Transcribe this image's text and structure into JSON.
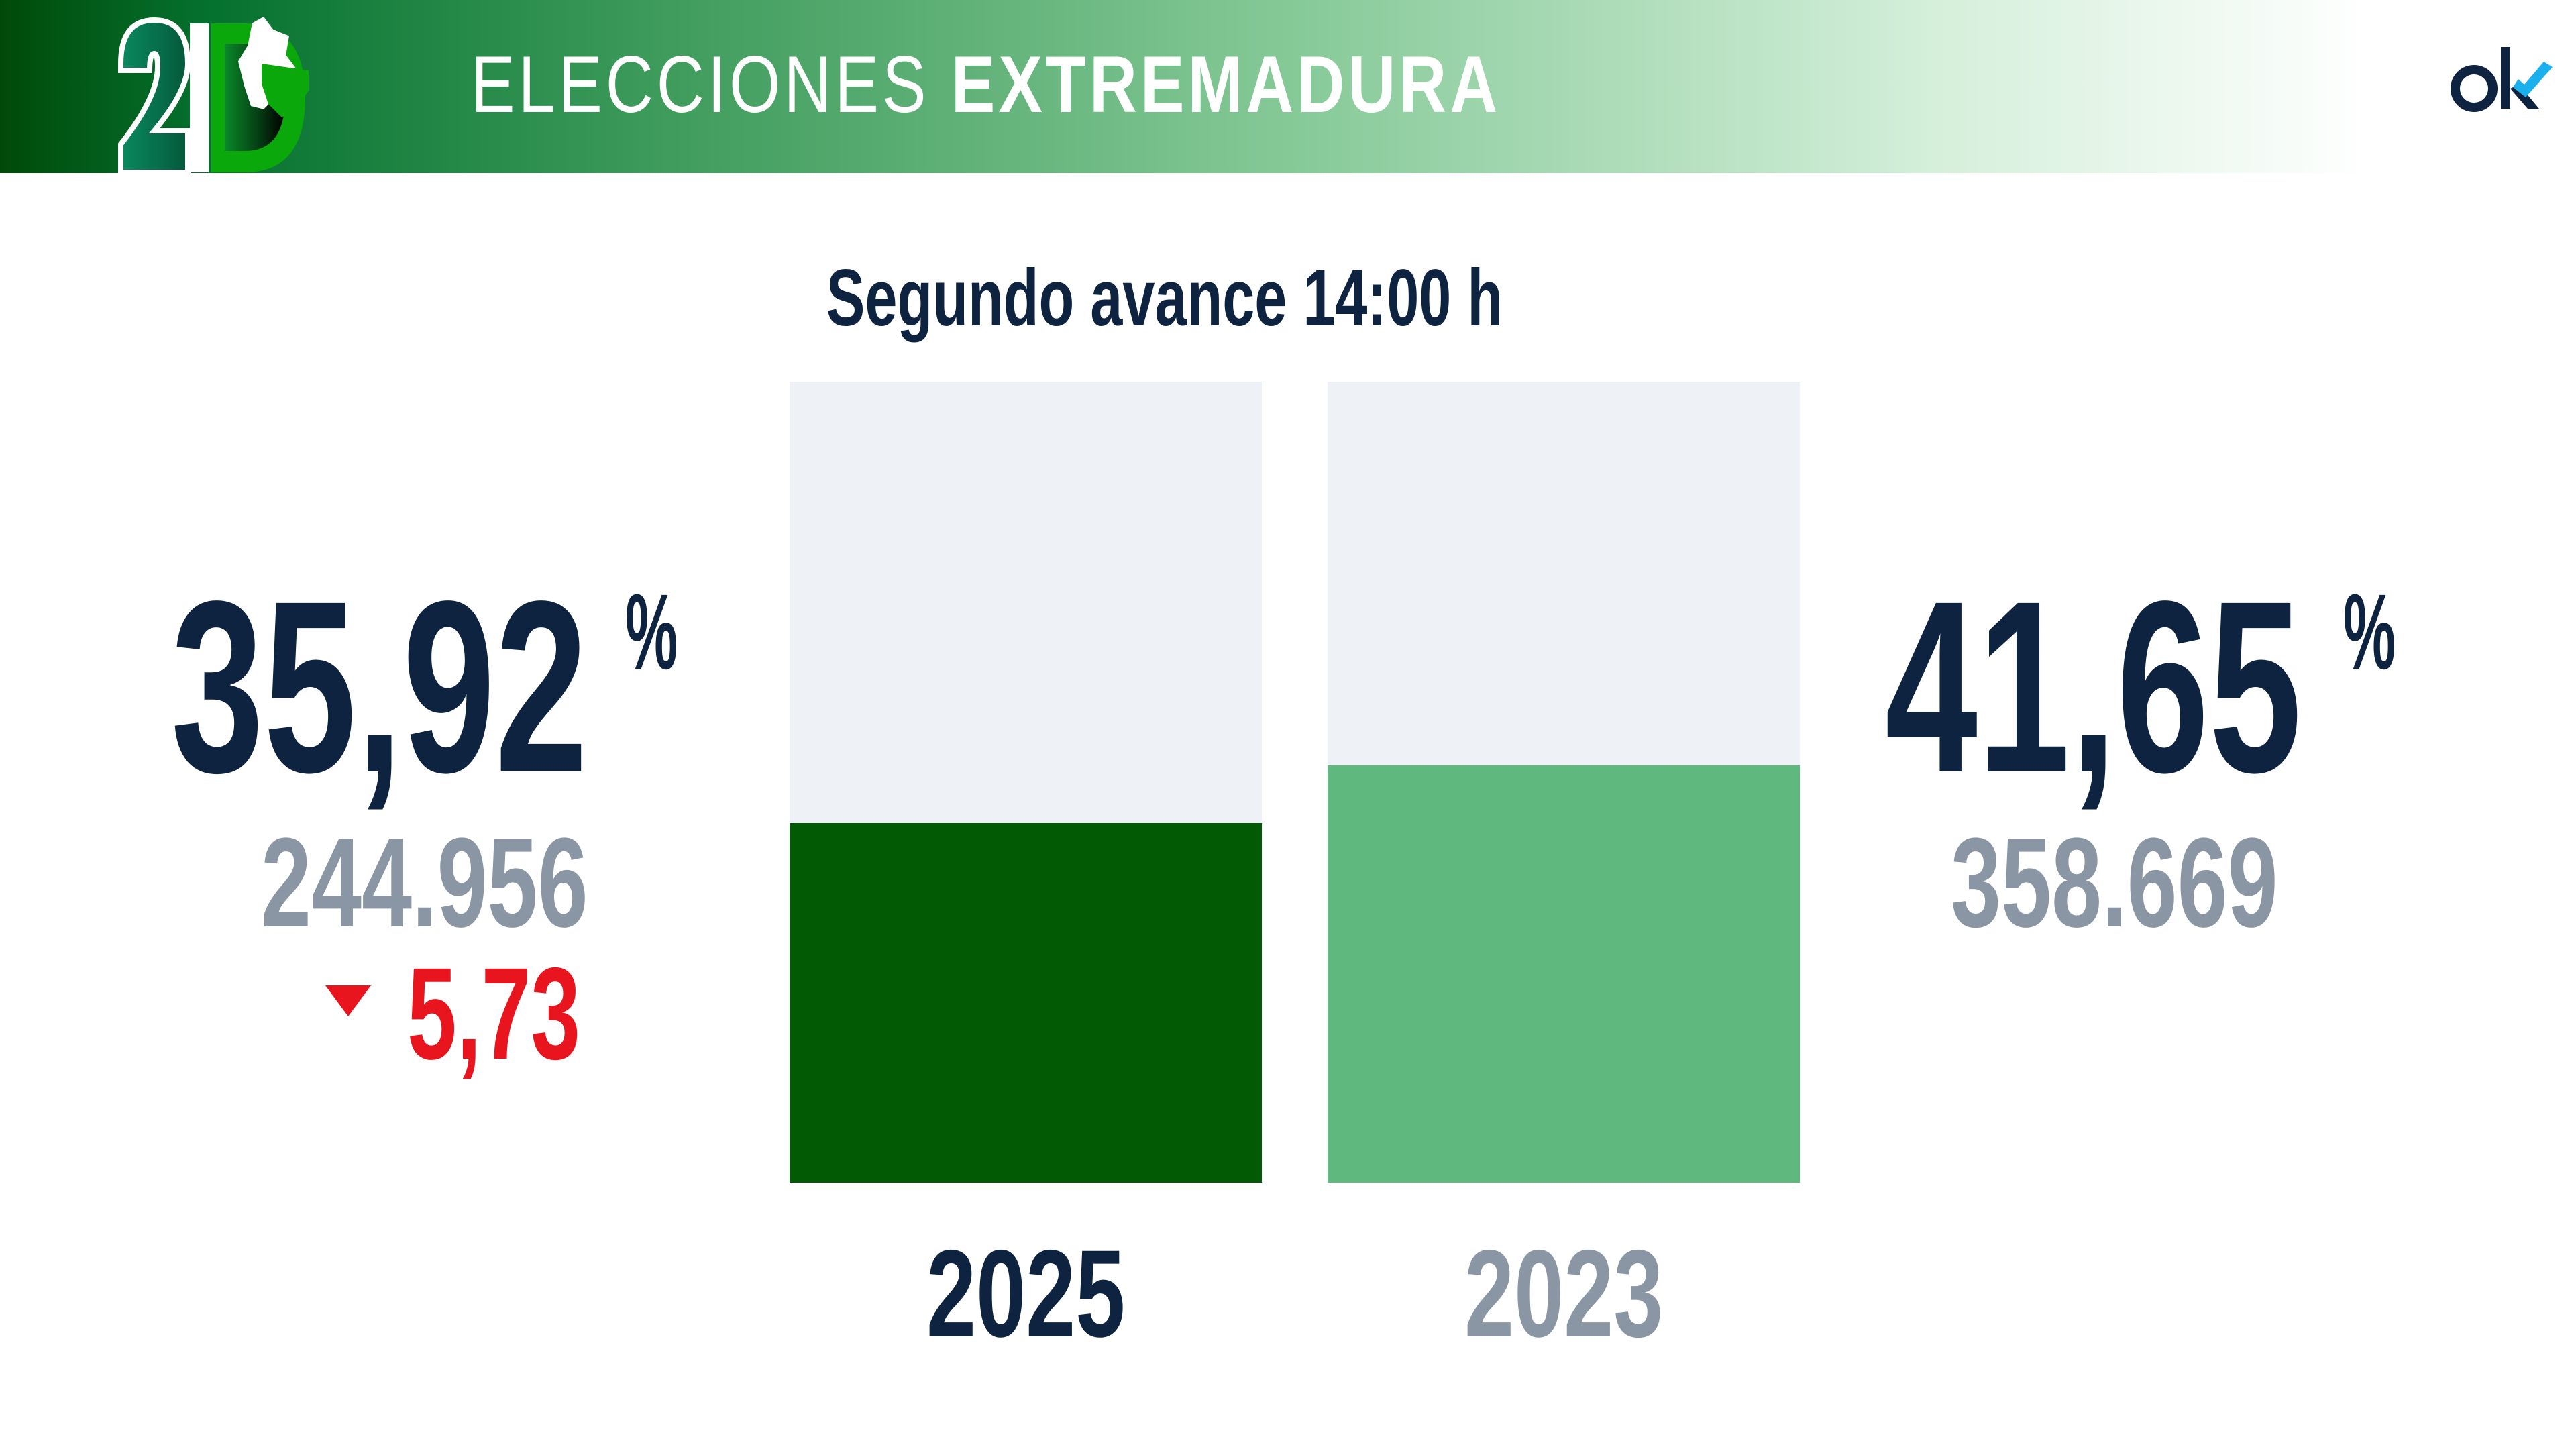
{
  "header": {
    "logo_text": "21D",
    "title_regular": "ELECCIONES",
    "title_bold": "EXTREMADURA",
    "brand_logo": "ok"
  },
  "subtitle": "Segundo avance 14:00 h",
  "chart_data": {
    "type": "bar",
    "categories": [
      "2025",
      "2023"
    ],
    "values": [
      35.92,
      41.65
    ],
    "unit": "%",
    "ylim": [
      0,
      80
    ],
    "colors": [
      "#025a05",
      "#5fb87e"
    ]
  },
  "current": {
    "year": "2025",
    "percent": "35,92",
    "percent_sign": "%",
    "votes": "244.956",
    "change": "5,73",
    "change_direction": "down",
    "change_icon": "triangle-down-icon"
  },
  "previous": {
    "year": "2023",
    "percent": "41,65",
    "percent_sign": "%",
    "votes": "358.669"
  },
  "colors": {
    "navy": "#0d2340",
    "gray": "#8a96a3",
    "red": "#e8141e",
    "bar_background": "#eef2f6"
  }
}
